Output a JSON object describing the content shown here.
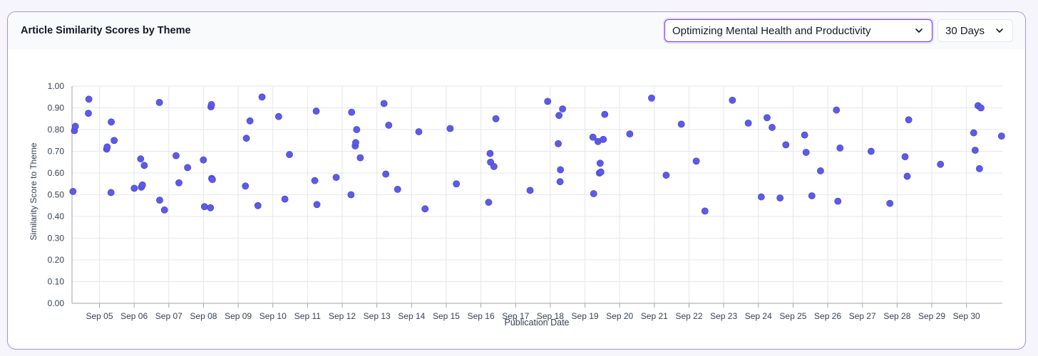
{
  "header": {
    "title": "Article Similarity Scores by Theme",
    "theme_select": "Optimizing Mental Health and Productivity",
    "range_select": "30 Days"
  },
  "colors": {
    "accent": "#7c3aed",
    "point": "#5b5ce6",
    "grid": "#e5e7eb"
  },
  "icons": {
    "dropdown": "chevron-down-icon"
  },
  "chart_data": {
    "type": "scatter",
    "title": "",
    "xlabel": "Publication Date",
    "ylabel": "Similarity Score to Theme",
    "ylim": [
      0,
      1
    ],
    "y_ticks": [
      "0.00",
      "0.10",
      "0.20",
      "0.30",
      "0.40",
      "0.50",
      "0.60",
      "0.70",
      "0.80",
      "0.90",
      "1.00"
    ],
    "x_ticks": [
      "Sep 05",
      "Sep 06",
      "Sep 07",
      "Sep 08",
      "Sep 09",
      "Sep 10",
      "Sep 11",
      "Sep 12",
      "Sep 13",
      "Sep 14",
      "Sep 15",
      "Sep 16",
      "Sep 17",
      "Sep 18",
      "Sep 19",
      "Sep 20",
      "Sep 21",
      "Sep 22",
      "Sep 23",
      "Sep 24",
      "Sep 25",
      "Sep 26",
      "Sep 27",
      "Sep 28",
      "Sep 29",
      "Sep 30"
    ],
    "x_tick_dates": [
      "2024-09-05",
      "2024-09-06",
      "2024-09-07",
      "2024-09-08",
      "2024-09-09",
      "2024-09-10",
      "2024-09-11",
      "2024-09-12",
      "2024-09-13",
      "2024-09-14",
      "2024-09-15",
      "2024-09-16",
      "2024-09-17",
      "2024-09-18",
      "2024-09-19",
      "2024-09-20",
      "2024-09-21",
      "2024-09-22",
      "2024-09-23",
      "2024-09-24",
      "2024-09-25",
      "2024-09-26",
      "2024-09-27",
      "2024-09-28",
      "2024-09-29",
      "2024-09-30"
    ],
    "xlim": [
      "2024-09-04T05:00",
      "2024-10-01T00:50"
    ],
    "grid": true,
    "points": [
      {
        "x": "2024-09-04T05:40",
        "y": 0.515
      },
      {
        "x": "2024-09-04T06:40",
        "y": 0.795
      },
      {
        "x": "2024-09-04T07:20",
        "y": 0.815
      },
      {
        "x": "2024-09-04T16:20",
        "y": 0.875
      },
      {
        "x": "2024-09-04T16:40",
        "y": 0.94
      },
      {
        "x": "2024-09-05T05:00",
        "y": 0.71
      },
      {
        "x": "2024-09-05T05:20",
        "y": 0.72
      },
      {
        "x": "2024-09-05T08:00",
        "y": 0.51
      },
      {
        "x": "2024-09-05T08:10",
        "y": 0.835
      },
      {
        "x": "2024-09-05T10:10",
        "y": 0.75
      },
      {
        "x": "2024-09-06T00:05",
        "y": 0.53
      },
      {
        "x": "2024-09-06T04:30",
        "y": 0.665
      },
      {
        "x": "2024-09-06T05:00",
        "y": 0.535
      },
      {
        "x": "2024-09-06T05:45",
        "y": 0.545
      },
      {
        "x": "2024-09-06T07:00",
        "y": 0.635
      },
      {
        "x": "2024-09-06T17:30",
        "y": 0.925
      },
      {
        "x": "2024-09-06T17:40",
        "y": 0.475
      },
      {
        "x": "2024-09-06T21:00",
        "y": 0.43
      },
      {
        "x": "2024-09-07T05:00",
        "y": 0.68
      },
      {
        "x": "2024-09-07T07:00",
        "y": 0.555
      },
      {
        "x": "2024-09-07T13:00",
        "y": 0.625
      },
      {
        "x": "2024-09-07T23:55",
        "y": 0.66
      },
      {
        "x": "2024-09-08T00:40",
        "y": 0.445
      },
      {
        "x": "2024-09-08T04:50",
        "y": 0.44
      },
      {
        "x": "2024-09-08T05:10",
        "y": 0.905
      },
      {
        "x": "2024-09-08T05:30",
        "y": 0.915
      },
      {
        "x": "2024-09-08T05:40",
        "y": 0.575
      },
      {
        "x": "2024-09-08T06:10",
        "y": 0.57
      },
      {
        "x": "2024-09-09T05:00",
        "y": 0.54
      },
      {
        "x": "2024-09-09T05:40",
        "y": 0.76
      },
      {
        "x": "2024-09-09T08:10",
        "y": 0.84
      },
      {
        "x": "2024-09-09T13:40",
        "y": 0.45
      },
      {
        "x": "2024-09-09T16:30",
        "y": 0.95
      },
      {
        "x": "2024-09-10T04:00",
        "y": 0.86
      },
      {
        "x": "2024-09-10T08:20",
        "y": 0.48
      },
      {
        "x": "2024-09-10T11:30",
        "y": 0.685
      },
      {
        "x": "2024-09-11T05:00",
        "y": 0.565
      },
      {
        "x": "2024-09-11T06:00",
        "y": 0.885
      },
      {
        "x": "2024-09-11T06:30",
        "y": 0.455
      },
      {
        "x": "2024-09-11T19:50",
        "y": 0.58
      },
      {
        "x": "2024-09-12T06:05",
        "y": 0.5
      },
      {
        "x": "2024-09-12T06:30",
        "y": 0.88
      },
      {
        "x": "2024-09-12T09:00",
        "y": 0.725
      },
      {
        "x": "2024-09-12T09:20",
        "y": 0.74
      },
      {
        "x": "2024-09-12T10:00",
        "y": 0.8
      },
      {
        "x": "2024-09-12T12:30",
        "y": 0.67
      },
      {
        "x": "2024-09-13T04:55",
        "y": 0.92
      },
      {
        "x": "2024-09-13T06:10",
        "y": 0.595
      },
      {
        "x": "2024-09-13T08:10",
        "y": 0.82
      },
      {
        "x": "2024-09-13T14:20",
        "y": 0.525
      },
      {
        "x": "2024-09-14T05:00",
        "y": 0.79
      },
      {
        "x": "2024-09-14T09:20",
        "y": 0.435
      },
      {
        "x": "2024-09-15T02:40",
        "y": 0.805
      },
      {
        "x": "2024-09-15T07:00",
        "y": 0.55
      },
      {
        "x": "2024-09-16T05:20",
        "y": 0.465
      },
      {
        "x": "2024-09-16T06:20",
        "y": 0.69
      },
      {
        "x": "2024-09-16T06:40",
        "y": 0.65
      },
      {
        "x": "2024-09-16T09:00",
        "y": 0.63
      },
      {
        "x": "2024-09-16T10:20",
        "y": 0.85
      },
      {
        "x": "2024-09-17T10:00",
        "y": 0.52
      },
      {
        "x": "2024-09-17T22:10",
        "y": 0.93
      },
      {
        "x": "2024-09-18T05:30",
        "y": 0.735
      },
      {
        "x": "2024-09-18T06:00",
        "y": 0.865
      },
      {
        "x": "2024-09-18T06:45",
        "y": 0.56
      },
      {
        "x": "2024-09-18T07:00",
        "y": 0.615
      },
      {
        "x": "2024-09-18T08:30",
        "y": 0.895
      },
      {
        "x": "2024-09-19T05:30",
        "y": 0.765
      },
      {
        "x": "2024-09-19T06:00",
        "y": 0.505
      },
      {
        "x": "2024-09-19T09:00",
        "y": 0.745
      },
      {
        "x": "2024-09-19T10:00",
        "y": 0.6
      },
      {
        "x": "2024-09-19T10:30",
        "y": 0.645
      },
      {
        "x": "2024-09-19T11:00",
        "y": 0.605
      },
      {
        "x": "2024-09-19T12:40",
        "y": 0.755
      },
      {
        "x": "2024-09-19T13:40",
        "y": 0.87
      },
      {
        "x": "2024-09-20T07:00",
        "y": 0.78
      },
      {
        "x": "2024-09-20T22:05",
        "y": 0.945
      },
      {
        "x": "2024-09-21T08:10",
        "y": 0.59
      },
      {
        "x": "2024-09-21T18:40",
        "y": 0.825
      },
      {
        "x": "2024-09-22T05:00",
        "y": 0.655
      },
      {
        "x": "2024-09-22T11:00",
        "y": 0.425
      },
      {
        "x": "2024-09-23T06:00",
        "y": 0.935
      },
      {
        "x": "2024-09-23T17:00",
        "y": 0.83
      },
      {
        "x": "2024-09-24T02:00",
        "y": 0.49
      },
      {
        "x": "2024-09-24T06:00",
        "y": 0.855
      },
      {
        "x": "2024-09-24T09:30",
        "y": 0.81
      },
      {
        "x": "2024-09-24T15:00",
        "y": 0.485
      },
      {
        "x": "2024-09-24T19:00",
        "y": 0.73
      },
      {
        "x": "2024-09-25T08:00",
        "y": 0.775
      },
      {
        "x": "2024-09-25T09:00",
        "y": 0.695
      },
      {
        "x": "2024-09-25T13:00",
        "y": 0.495
      },
      {
        "x": "2024-09-25T19:00",
        "y": 0.61
      },
      {
        "x": "2024-09-26T06:00",
        "y": 0.89
      },
      {
        "x": "2024-09-26T07:00",
        "y": 0.47
      },
      {
        "x": "2024-09-26T08:30",
        "y": 0.715
      },
      {
        "x": "2024-09-27T06:00",
        "y": 0.7
      },
      {
        "x": "2024-09-27T19:00",
        "y": 0.46
      },
      {
        "x": "2024-09-28T05:30",
        "y": 0.675
      },
      {
        "x": "2024-09-28T07:00",
        "y": 0.585
      },
      {
        "x": "2024-09-28T08:00",
        "y": 0.845
      },
      {
        "x": "2024-09-29T06:00",
        "y": 0.64
      },
      {
        "x": "2024-09-30T05:00",
        "y": 0.785
      },
      {
        "x": "2024-09-30T06:00",
        "y": 0.705
      },
      {
        "x": "2024-09-30T08:00",
        "y": 0.91
      },
      {
        "x": "2024-09-30T09:00",
        "y": 0.62
      },
      {
        "x": "2024-09-30T10:00",
        "y": 0.9
      },
      {
        "x": "2024-10-01T00:15",
        "y": 0.77
      }
    ]
  }
}
